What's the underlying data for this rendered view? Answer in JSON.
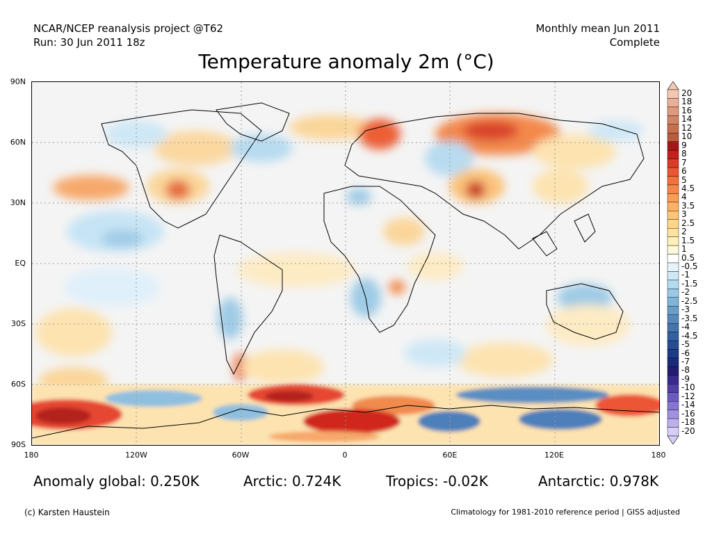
{
  "header": {
    "left_line1": "NCAR/NCEP reanalysis project @T62",
    "left_line2": "Run: 30 Jun 2011 18z",
    "right_line1": "Monthly mean Jun 2011",
    "right_line2": "Complete",
    "title": "Temperature anomaly 2m (°C)"
  },
  "axes": {
    "lat_labels": [
      "90N",
      "60N",
      "30N",
      "EQ",
      "30S",
      "60S",
      "90S"
    ],
    "lon_labels": [
      "180",
      "120W",
      "60W",
      "0",
      "60E",
      "120E",
      "180"
    ]
  },
  "colorbar": {
    "labels": [
      "20",
      "18",
      "16",
      "14",
      "12",
      "10",
      "9",
      "8",
      "7",
      "6",
      "5",
      "4.5",
      "4",
      "3.5",
      "3",
      "2.5",
      "2",
      "1.5",
      "1",
      "0.5",
      "-0.5",
      "-1",
      "-1.5",
      "-2",
      "-2.5",
      "-3",
      "-3.5",
      "-4",
      "-4.5",
      "-5",
      "-6",
      "-7",
      "-8",
      "-9",
      "-10",
      "-12",
      "-14",
      "-16",
      "-18",
      "-20"
    ],
    "colors": [
      "#f4c7b2",
      "#eab097",
      "#dd9a7c",
      "#d18565",
      "#c4704f",
      "#b85c3d",
      "#a31619",
      "#c81e1e",
      "#dd3a2a",
      "#ec5535",
      "#f2713e",
      "#f7864a",
      "#f99d55",
      "#fbb266",
      "#fcc578",
      "#fdd58b",
      "#fde39f",
      "#fdf0b9",
      "#fcf8d8",
      "#ffffff",
      "#e5f3fb",
      "#cfe8f6",
      "#b3dbef",
      "#99c9e6",
      "#80b4d8",
      "#6a9ec9",
      "#5689bb",
      "#4574ab",
      "#3460a0",
      "#264d93",
      "#1e3b85",
      "#1a2c77",
      "#241d6f",
      "#3b2a8c",
      "#5040a6",
      "#6b5bc0",
      "#8675d2",
      "#a192e0",
      "#bcb0ec",
      "#d6cef6"
    ]
  },
  "stats": {
    "global": "Anomaly global: 0.250K",
    "arctic": "Arctic: 0.724K",
    "tropics": "Tropics: -0.02K",
    "antarctic": "Antarctic: 0.978K"
  },
  "footer": {
    "copyright": "(c) Karsten Haustein",
    "climatology": "Climatology for 1981-2010 reference period | GISS adjusted"
  }
}
